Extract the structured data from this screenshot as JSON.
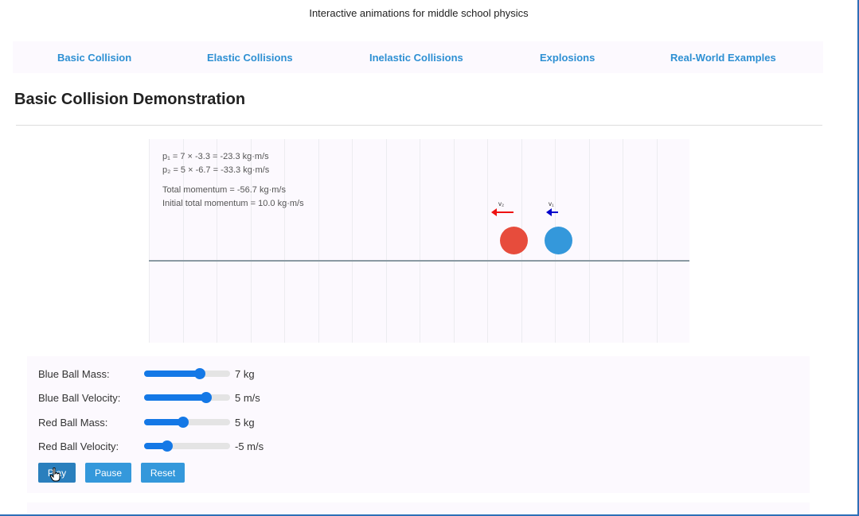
{
  "header": {
    "subtitle": "Interactive animations for middle school physics"
  },
  "nav": {
    "items": [
      {
        "label": "Basic Collision"
      },
      {
        "label": "Elastic Collisions"
      },
      {
        "label": "Inelastic Collisions"
      },
      {
        "label": "Explosions"
      },
      {
        "label": "Real-World Examples"
      }
    ]
  },
  "main": {
    "title": "Basic Collision Demonstration"
  },
  "simulation": {
    "p1_line": "p₁ = 7 × -3.3 = -23.3 kg·m/s",
    "p2_line": "p₂ = 5 × -6.7 = -33.3 kg·m/s",
    "total_line": "Total momentum = -56.7 kg·m/s",
    "initial_line": "Initial total momentum = 10.0 kg·m/s",
    "v1_label": "v₁",
    "v2_label": "v₂",
    "blue_ball_color": "#3498db",
    "red_ball_color": "#e74c3c",
    "v1_arrow_color": "#0000cc",
    "v2_arrow_color": "#ee1111"
  },
  "controls": {
    "blue_mass": {
      "label": "Blue Ball Mass:",
      "value": "7 kg",
      "level": 0.65
    },
    "blue_velocity": {
      "label": "Blue Ball Velocity:",
      "value": "5 m/s",
      "level": 0.72
    },
    "red_mass": {
      "label": "Red Ball Mass:",
      "value": "5 kg",
      "level": 0.45
    },
    "red_velocity": {
      "label": "Red Ball Velocity:",
      "value": "-5 m/s",
      "level": 0.27
    }
  },
  "buttons": {
    "play": "Play",
    "pause": "Pause",
    "reset": "Reset"
  }
}
